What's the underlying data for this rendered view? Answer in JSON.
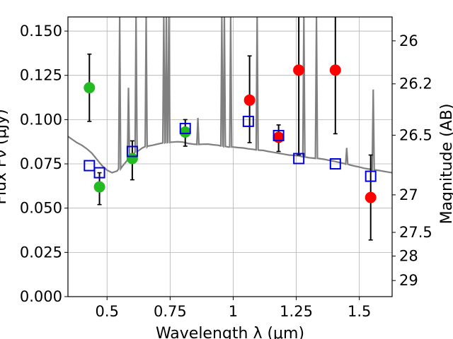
{
  "chart_data": {
    "type": "scatter",
    "xlabel": "Wavelength  λ (μm)",
    "ylabel": "Flux Fν (μJy)",
    "ylabel_right": "Magnitude (AB)",
    "xlim": [
      0.345,
      1.63
    ],
    "ylim": [
      0,
      0.158
    ],
    "grid": true,
    "x_ticks": [
      0.5,
      0.75,
      1.0,
      1.25,
      1.5
    ],
    "x_tick_labels": [
      "0.5",
      "0.75",
      "1",
      "1.25",
      "1.5"
    ],
    "y_ticks": [
      0,
      0.025,
      0.05,
      0.075,
      0.1,
      0.125,
      0.15
    ],
    "y_tick_labels": [
      "0.000",
      "0.025",
      "0.050",
      "0.075",
      "0.100",
      "0.125",
      "0.150"
    ],
    "right_ticks": [
      {
        "label": "26",
        "flux": 0.1445
      },
      {
        "label": "26.2",
        "flux": 0.1202
      },
      {
        "label": "26.5",
        "flux": 0.0912
      },
      {
        "label": "27",
        "flux": 0.0575
      },
      {
        "label": "27.5",
        "flux": 0.0363
      },
      {
        "label": "28",
        "flux": 0.0229
      },
      {
        "label": "29",
        "flux": 0.0091
      }
    ],
    "series": [
      {
        "kind": "line",
        "color": "#808080",
        "x": [
          0.345,
          0.36,
          0.38,
          0.4,
          0.42,
          0.44,
          0.46,
          0.48,
          0.5,
          0.52,
          0.54,
          0.56,
          0.58,
          0.6,
          0.62,
          0.64,
          0.66,
          0.68,
          0.7,
          0.72,
          0.75,
          0.78,
          0.8,
          0.82,
          0.84,
          0.86,
          0.88,
          0.9,
          0.92,
          0.94,
          0.96,
          0.98,
          1.0,
          1.02,
          1.04,
          1.06,
          1.08,
          1.1,
          1.12,
          1.14,
          1.16,
          1.18,
          1.2,
          1.22,
          1.24,
          1.26,
          1.28,
          1.3,
          1.32,
          1.34,
          1.36,
          1.38,
          1.4,
          1.42,
          1.44,
          1.46,
          1.48,
          1.5,
          1.52,
          1.54,
          1.56,
          1.58,
          1.6,
          1.63
        ],
        "y": [
          0.0905,
          0.089,
          0.087,
          0.0855,
          0.0835,
          0.081,
          0.0775,
          0.074,
          0.0715,
          0.07,
          0.071,
          0.0735,
          0.077,
          0.08,
          0.082,
          0.084,
          0.085,
          0.0855,
          0.0862,
          0.0868,
          0.0872,
          0.0875,
          0.0873,
          0.0866,
          0.0862,
          0.086,
          0.0861,
          0.0862,
          0.0858,
          0.0855,
          0.085,
          0.0845,
          0.0845,
          0.0842,
          0.084,
          0.0835,
          0.0832,
          0.0828,
          0.0826,
          0.082,
          0.0815,
          0.081,
          0.0805,
          0.08,
          0.0798,
          0.0795,
          0.079,
          0.0785,
          0.0782,
          0.078,
          0.0776,
          0.077,
          0.0765,
          0.0758,
          0.0752,
          0.0745,
          0.0738,
          0.0732,
          0.0725,
          0.072,
          0.0716,
          0.0712,
          0.0707,
          0.07
        ],
        "lines": [
          {
            "x": 0.55,
            "peak": 0.158
          },
          {
            "x": 0.585,
            "peak": 0.118
          },
          {
            "x": 0.615,
            "peak": 0.158
          },
          {
            "x": 0.655,
            "peak": 0.158
          },
          {
            "x": 0.725,
            "peak": 0.158
          },
          {
            "x": 0.735,
            "peak": 0.158
          },
          {
            "x": 0.745,
            "peak": 0.158
          },
          {
            "x": 0.86,
            "peak": 0.101
          },
          {
            "x": 0.955,
            "peak": 0.158
          },
          {
            "x": 0.965,
            "peak": 0.158
          },
          {
            "x": 0.99,
            "peak": 0.158
          },
          {
            "x": 1.095,
            "peak": 0.158
          },
          {
            "x": 1.28,
            "peak": 0.158
          },
          {
            "x": 1.33,
            "peak": 0.158
          },
          {
            "x": 1.45,
            "peak": 0.084
          },
          {
            "x": 1.555,
            "peak": 0.117
          }
        ]
      },
      {
        "kind": "points",
        "marker": "filled-circle",
        "color": "#22bb22",
        "x": [
          0.43,
          0.47,
          0.6,
          0.81
        ],
        "y": [
          0.118,
          0.062,
          0.078,
          0.093
        ],
        "yerr_low": [
          0.099,
          0.052,
          0.066,
          0.085
        ],
        "yerr_high": [
          0.137,
          0.07,
          0.088,
          0.1
        ]
      },
      {
        "kind": "points",
        "marker": "filled-circle",
        "color": "#ff0000",
        "x": [
          1.065,
          1.18,
          1.26,
          1.405,
          1.545
        ],
        "y": [
          0.111,
          0.09,
          0.128,
          0.128,
          0.056
        ],
        "yerr_low": [
          0.087,
          0.082,
          0.08,
          0.092,
          0.032
        ],
        "yerr_high": [
          0.136,
          0.097,
          0.158,
          0.158,
          0.08
        ]
      },
      {
        "kind": "points",
        "marker": "open-square",
        "color": "#0000dd",
        "x": [
          0.43,
          0.47,
          0.6,
          0.81,
          1.06,
          1.18,
          1.26,
          1.405,
          1.545
        ],
        "y": [
          0.074,
          0.07,
          0.082,
          0.095,
          0.099,
          0.091,
          0.078,
          0.075,
          0.068
        ]
      }
    ]
  }
}
